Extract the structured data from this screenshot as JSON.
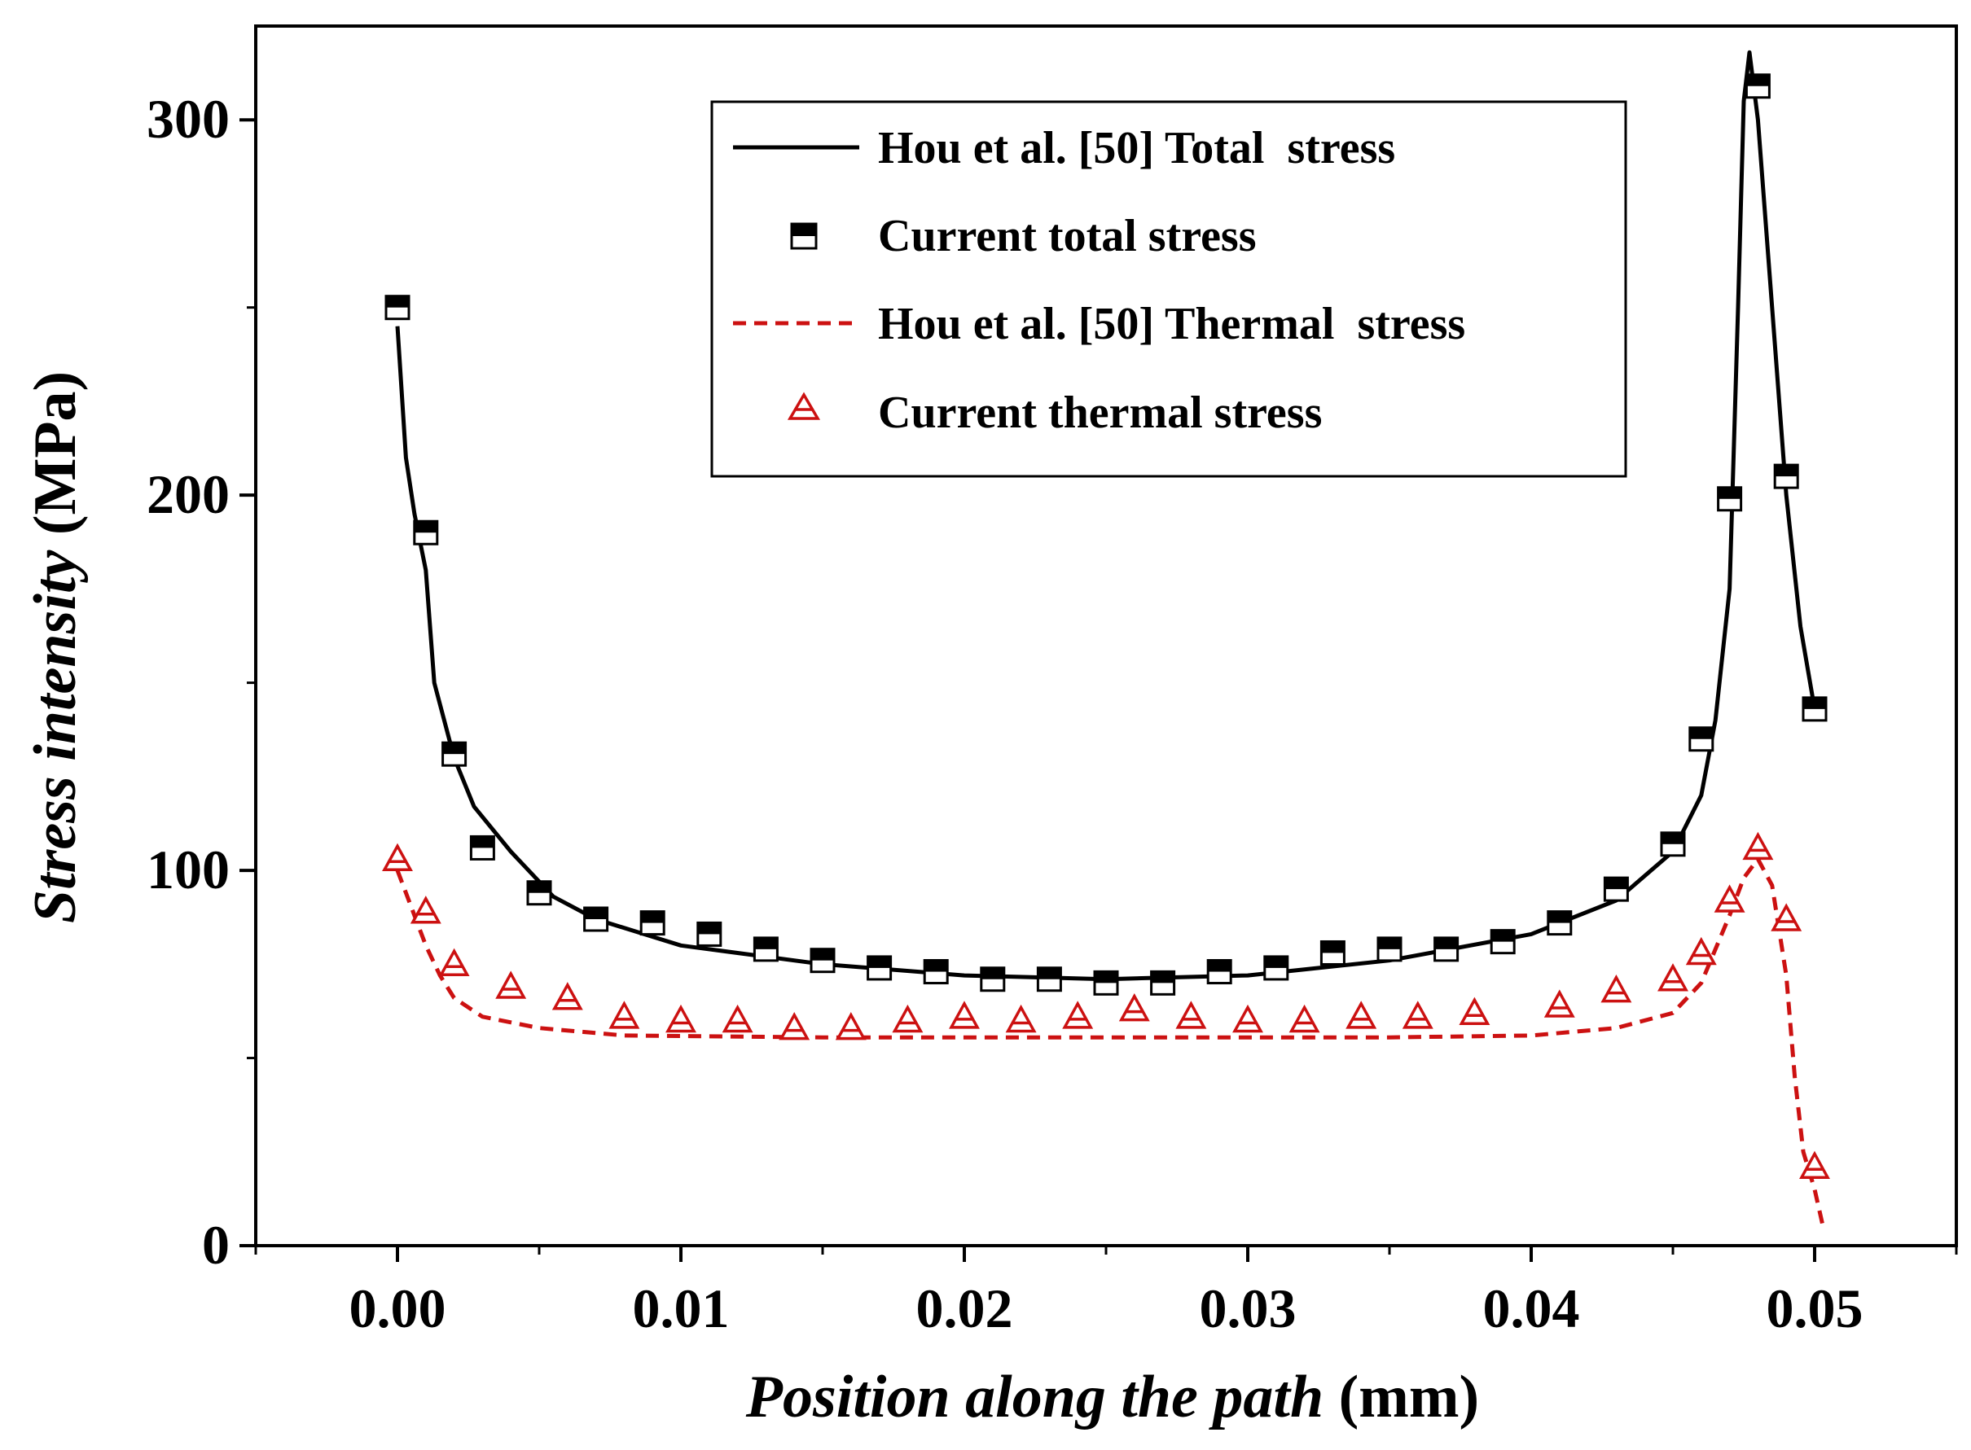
{
  "chart_data": {
    "type": "line",
    "xlabel_italic": "Position along the path",
    "xlabel_unit": "(mm)",
    "ylabel_italic": "Stress intensity",
    "ylabel_unit": "(MPa)",
    "xlim": [
      -0.005,
      0.055
    ],
    "ylim": [
      0,
      325
    ],
    "x_ticks": [
      0.0,
      0.01,
      0.02,
      0.03,
      0.04,
      0.05
    ],
    "x_tick_labels": [
      "0.00",
      "0.01",
      "0.02",
      "0.03",
      "0.04",
      "0.05"
    ],
    "y_ticks": [
      0,
      100,
      200,
      300
    ],
    "y_tick_labels": [
      "0",
      "100",
      "200",
      "300"
    ],
    "y_minor_ticks": [
      50,
      150,
      250
    ],
    "grid": false,
    "legend_position": "top-right",
    "colors": {
      "black": "#000000",
      "red": "#cc1111"
    },
    "series": [
      {
        "name": "Hou et al. [50] Total  stress",
        "style": "solid-line",
        "color": "#000000",
        "x": [
          0.0,
          0.0003,
          0.0006,
          0.001,
          0.0013,
          0.002,
          0.0027,
          0.004,
          0.0055,
          0.007,
          0.01,
          0.015,
          0.02,
          0.025,
          0.03,
          0.035,
          0.04,
          0.043,
          0.045,
          0.046,
          0.0465,
          0.047,
          0.0473,
          0.0475,
          0.0477,
          0.048,
          0.0485,
          0.049,
          0.0495,
          0.05
        ],
        "y": [
          245,
          210,
          195,
          180,
          150,
          130,
          117,
          105,
          93,
          87,
          80,
          75,
          72,
          71,
          72,
          76,
          83,
          92,
          105,
          120,
          140,
          175,
          250,
          305,
          318,
          300,
          250,
          200,
          165,
          143
        ]
      },
      {
        "name": "Current total stress",
        "style": "half-filled-square",
        "color": "#000000",
        "x": [
          0.0,
          0.001,
          0.002,
          0.003,
          0.005,
          0.007,
          0.009,
          0.011,
          0.013,
          0.015,
          0.017,
          0.019,
          0.021,
          0.023,
          0.025,
          0.027,
          0.029,
          0.031,
          0.033,
          0.035,
          0.037,
          0.039,
          0.041,
          0.043,
          0.045,
          0.046,
          0.047,
          0.048,
          0.049,
          0.05
        ],
        "y": [
          250,
          190,
          131,
          106,
          94,
          87,
          86,
          83,
          79,
          76,
          74,
          73,
          71,
          71,
          70,
          70,
          73,
          74,
          78,
          79,
          79,
          81,
          86,
          95,
          107,
          135,
          199,
          309,
          205,
          143
        ]
      },
      {
        "name": "Hou et al. [50] Thermal  stress",
        "style": "dashed-line",
        "color": "#cc1111",
        "x": [
          0.0,
          0.0005,
          0.001,
          0.0015,
          0.002,
          0.003,
          0.005,
          0.008,
          0.015,
          0.025,
          0.035,
          0.04,
          0.043,
          0.045,
          0.046,
          0.047,
          0.0475,
          0.048,
          0.0485,
          0.049,
          0.0493,
          0.0496,
          0.05,
          0.0503
        ],
        "y": [
          100,
          90,
          80,
          72,
          66,
          61,
          58,
          56,
          55.5,
          55.5,
          55.5,
          56,
          58,
          62,
          70,
          88,
          98,
          103,
          96,
          72,
          45,
          25,
          15,
          5
        ]
      },
      {
        "name": "Current thermal stress",
        "style": "open-triangle",
        "color": "#cc1111",
        "x": [
          0.0,
          0.001,
          0.002,
          0.004,
          0.006,
          0.008,
          0.01,
          0.012,
          0.014,
          0.016,
          0.018,
          0.02,
          0.022,
          0.024,
          0.026,
          0.028,
          0.03,
          0.032,
          0.034,
          0.036,
          0.038,
          0.041,
          0.043,
          0.045,
          0.046,
          0.047,
          0.048,
          0.049,
          0.05
        ],
        "y": [
          103,
          89,
          75,
          69,
          66,
          61,
          60,
          60,
          58,
          58,
          60,
          61,
          60,
          61,
          63,
          61,
          60,
          60,
          61,
          61,
          62,
          64,
          68,
          71,
          78,
          92,
          106,
          87,
          21
        ]
      }
    ]
  }
}
